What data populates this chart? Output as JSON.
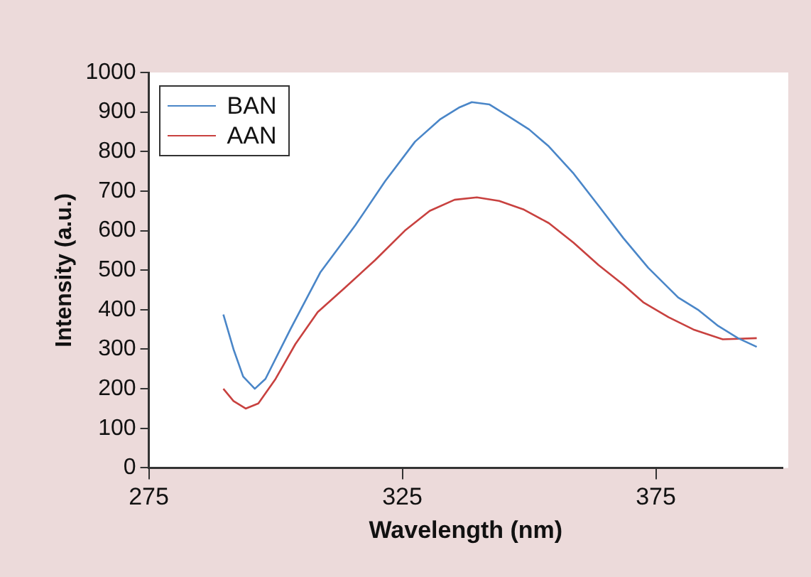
{
  "chart_data": {
    "type": "line",
    "xlabel": "Wavelength (nm)",
    "ylabel": "Intensity (a.u.)",
    "xlim": [
      275,
      400
    ],
    "xticks": [
      275,
      325,
      375
    ],
    "ylim": [
      0,
      1000
    ],
    "yticks": [
      0,
      100,
      200,
      300,
      400,
      500,
      600,
      700,
      800,
      900,
      1000
    ],
    "grid": false,
    "legend": "top left",
    "marker": "none",
    "line_style": "solid",
    "series": [
      {
        "name": "BAN",
        "color": "#4a86c8",
        "x": [
          289.7,
          291.7,
          293.6,
          295.9,
          298,
          302.9,
          308.8,
          315.7,
          321.6,
          327.5,
          332.4,
          336.3,
          338.7,
          342.2,
          346.1,
          350,
          353.9,
          358.8,
          363.7,
          368.6,
          373.5,
          379.4,
          383.3,
          387.3,
          391.2,
          394.9
        ],
        "values": [
          388,
          300,
          231,
          200,
          225,
          350,
          494,
          613,
          725,
          825,
          881,
          912,
          925,
          919,
          888,
          856,
          813,
          744,
          663,
          581,
          506,
          431,
          400,
          359,
          328,
          306
        ]
      },
      {
        "name": "AAN",
        "color": "#c8413f",
        "x": [
          289.7,
          291.7,
          294.1,
          296.6,
          300,
          303.9,
          308.3,
          313.7,
          319.6,
          325.5,
          330.4,
          335.3,
          339.7,
          344.1,
          349,
          353.9,
          358.8,
          363.7,
          368.6,
          372.5,
          377.5,
          382.4,
          388.2,
          394.9
        ],
        "values": [
          200,
          169,
          150,
          163,
          225,
          313,
          394,
          456,
          525,
          600,
          650,
          678,
          684,
          675,
          653,
          619,
          569,
          513,
          463,
          419,
          381,
          350,
          325,
          328
        ]
      }
    ]
  }
}
